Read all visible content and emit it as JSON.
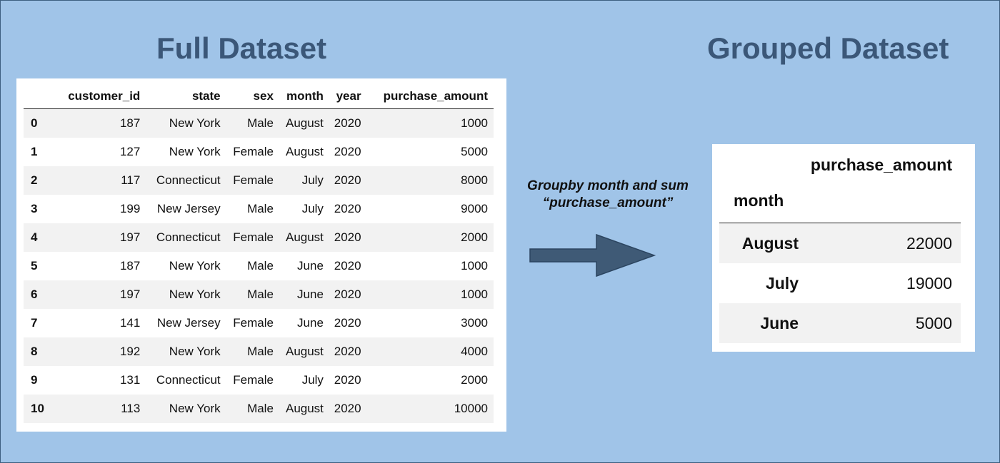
{
  "titles": {
    "left": "Full Dataset",
    "right": "Grouped Dataset"
  },
  "full_table": {
    "columns": [
      "customer_id",
      "state",
      "sex",
      "month",
      "year",
      "purchase_amount"
    ],
    "rows": [
      {
        "index": "0",
        "cells": [
          "187",
          "New York",
          "Male",
          "August",
          "2020",
          "1000"
        ]
      },
      {
        "index": "1",
        "cells": [
          "127",
          "New York",
          "Female",
          "August",
          "2020",
          "5000"
        ]
      },
      {
        "index": "2",
        "cells": [
          "117",
          "Connecticut",
          "Female",
          "July",
          "2020",
          "8000"
        ]
      },
      {
        "index": "3",
        "cells": [
          "199",
          "New Jersey",
          "Male",
          "July",
          "2020",
          "9000"
        ]
      },
      {
        "index": "4",
        "cells": [
          "197",
          "Connecticut",
          "Female",
          "August",
          "2020",
          "2000"
        ]
      },
      {
        "index": "5",
        "cells": [
          "187",
          "New York",
          "Male",
          "June",
          "2020",
          "1000"
        ]
      },
      {
        "index": "6",
        "cells": [
          "197",
          "New York",
          "Male",
          "June",
          "2020",
          "1000"
        ]
      },
      {
        "index": "7",
        "cells": [
          "141",
          "New Jersey",
          "Female",
          "June",
          "2020",
          "3000"
        ]
      },
      {
        "index": "8",
        "cells": [
          "192",
          "New York",
          "Male",
          "August",
          "2020",
          "4000"
        ]
      },
      {
        "index": "9",
        "cells": [
          "131",
          "Connecticut",
          "Female",
          "July",
          "2020",
          "2000"
        ]
      },
      {
        "index": "10",
        "cells": [
          "113",
          "New York",
          "Male",
          "August",
          "2020",
          "10000"
        ]
      }
    ]
  },
  "grouped_table": {
    "column": "purchase_amount",
    "index_name": "month",
    "rows": [
      {
        "index": "August",
        "value": "22000"
      },
      {
        "index": "July",
        "value": "19000"
      },
      {
        "index": "June",
        "value": "5000"
      }
    ]
  },
  "caption": {
    "line1": "Groupby month and sum",
    "line2": "“purchase_amount”"
  },
  "colors": {
    "background": "#a0c4e8",
    "title": "#3b5778",
    "arrow": "#3f5a76"
  }
}
